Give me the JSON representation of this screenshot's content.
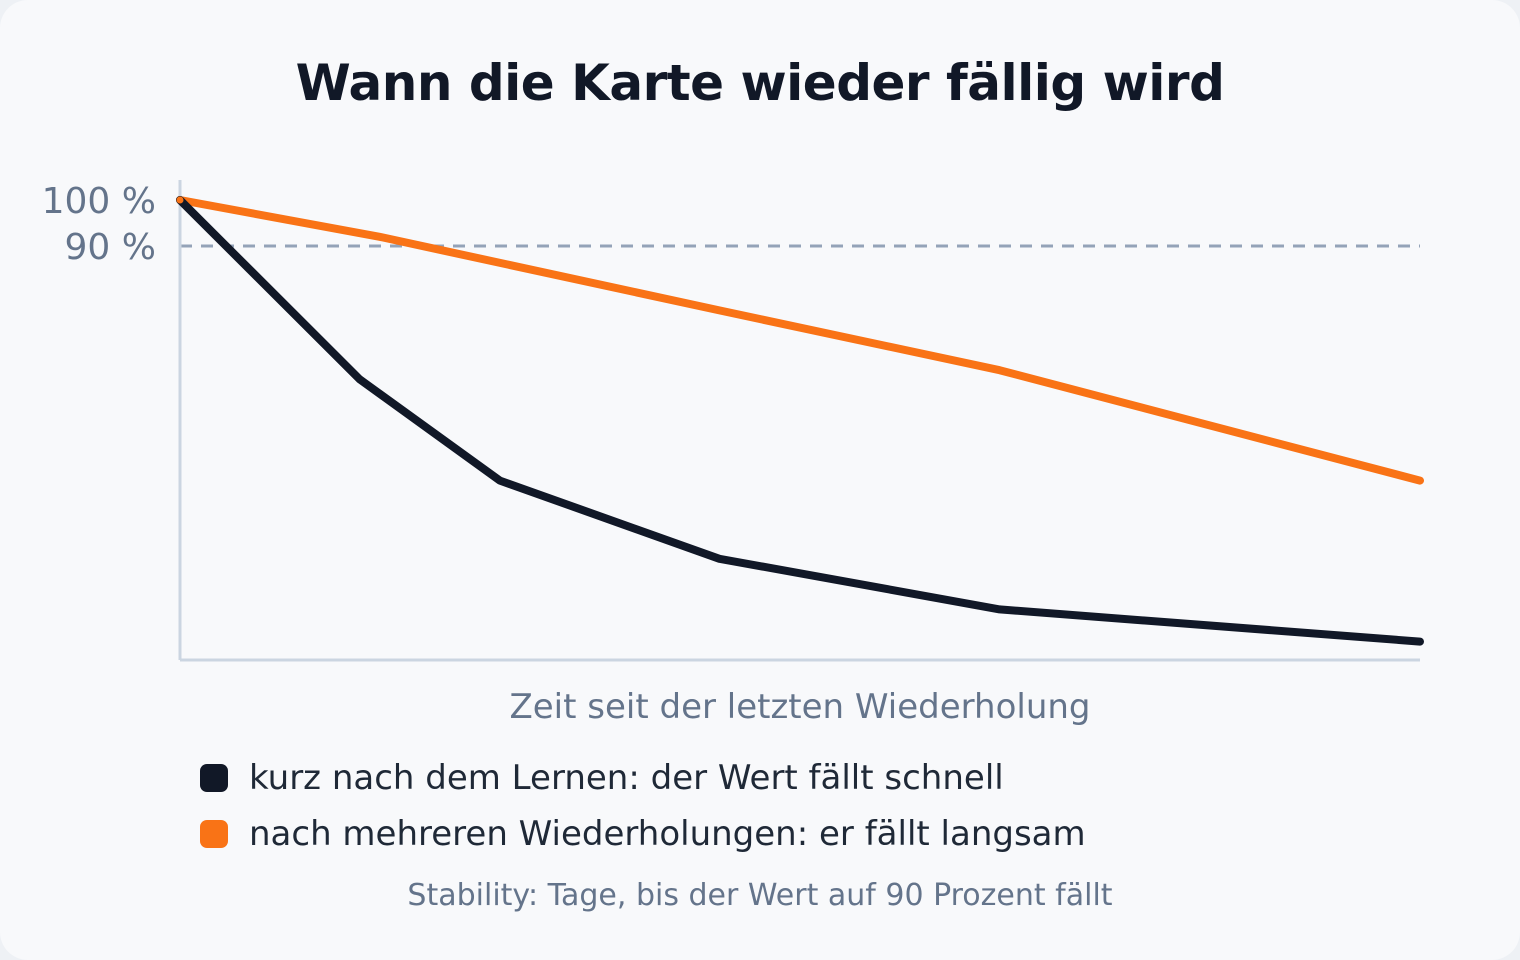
{
  "title": "Wann die Karte wieder fällig wird",
  "footnote": "Stability: Tage, bis der Wert auf 90 Prozent fällt",
  "chart_data": {
    "type": "line",
    "title": "Wann die Karte wieder fällig wird",
    "xlabel": "Zeit seit der letzten Wiederholung",
    "ylabel": "",
    "ylim": [
      0,
      100
    ],
    "xlim": [
      0,
      1
    ],
    "y_ticks": [
      {
        "value": 100,
        "label": "100 %"
      },
      {
        "value": 90,
        "label": "90 %"
      }
    ],
    "reference_lines": [
      {
        "axis": "y",
        "value": 90,
        "style": "dashed",
        "color": "#94a3b8"
      }
    ],
    "grid": false,
    "legend_position": "bottom-left",
    "series": [
      {
        "name": "kurz nach dem Lernen: der Wert fällt schnell",
        "color": "#111827",
        "points": [
          {
            "x": 0.0,
            "y": 100
          },
          {
            "x": 0.145,
            "y": 61
          },
          {
            "x": 0.258,
            "y": 39
          },
          {
            "x": 0.435,
            "y": 22
          },
          {
            "x": 0.661,
            "y": 11
          },
          {
            "x": 1.0,
            "y": 4
          }
        ]
      },
      {
        "name": "nach mehreren Wiederholungen: er fällt langsam",
        "color": "#f97316",
        "points": [
          {
            "x": 0.0,
            "y": 100
          },
          {
            "x": 0.161,
            "y": 92
          },
          {
            "x": 0.435,
            "y": 76
          },
          {
            "x": 0.661,
            "y": 63
          },
          {
            "x": 1.0,
            "y": 39
          }
        ]
      }
    ]
  }
}
